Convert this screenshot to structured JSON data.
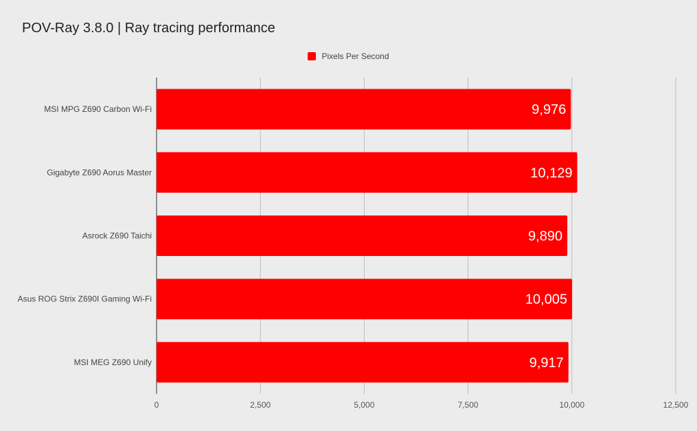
{
  "chart_data": {
    "type": "bar",
    "orientation": "horizontal",
    "title": "POV-Ray 3.8.0 | Ray tracing performance",
    "categories": [
      "MSI MPG Z690 Carbon Wi-Fi",
      "Gigabyte Z690 Aorus Master",
      "Asrock Z690 Taichi",
      "Asus ROG Strix Z690I Gaming Wi-Fi",
      "MSI MEG Z690 Unify"
    ],
    "series": [
      {
        "name": "Pixels Per Second",
        "color": "#ff0000",
        "values": [
          9976,
          10129,
          9890,
          10005,
          9917
        ],
        "value_labels": [
          "9,976",
          "10,129",
          "9,890",
          "10,005",
          "9,917"
        ]
      }
    ],
    "xlim": [
      0,
      12500
    ],
    "xticks": [
      0,
      2500,
      5000,
      7500,
      10000,
      12500
    ],
    "xtick_labels": [
      "0",
      "2,500",
      "5,000",
      "7,500",
      "10,000",
      "12,500"
    ],
    "grid": true,
    "legend_position": "top-center"
  }
}
